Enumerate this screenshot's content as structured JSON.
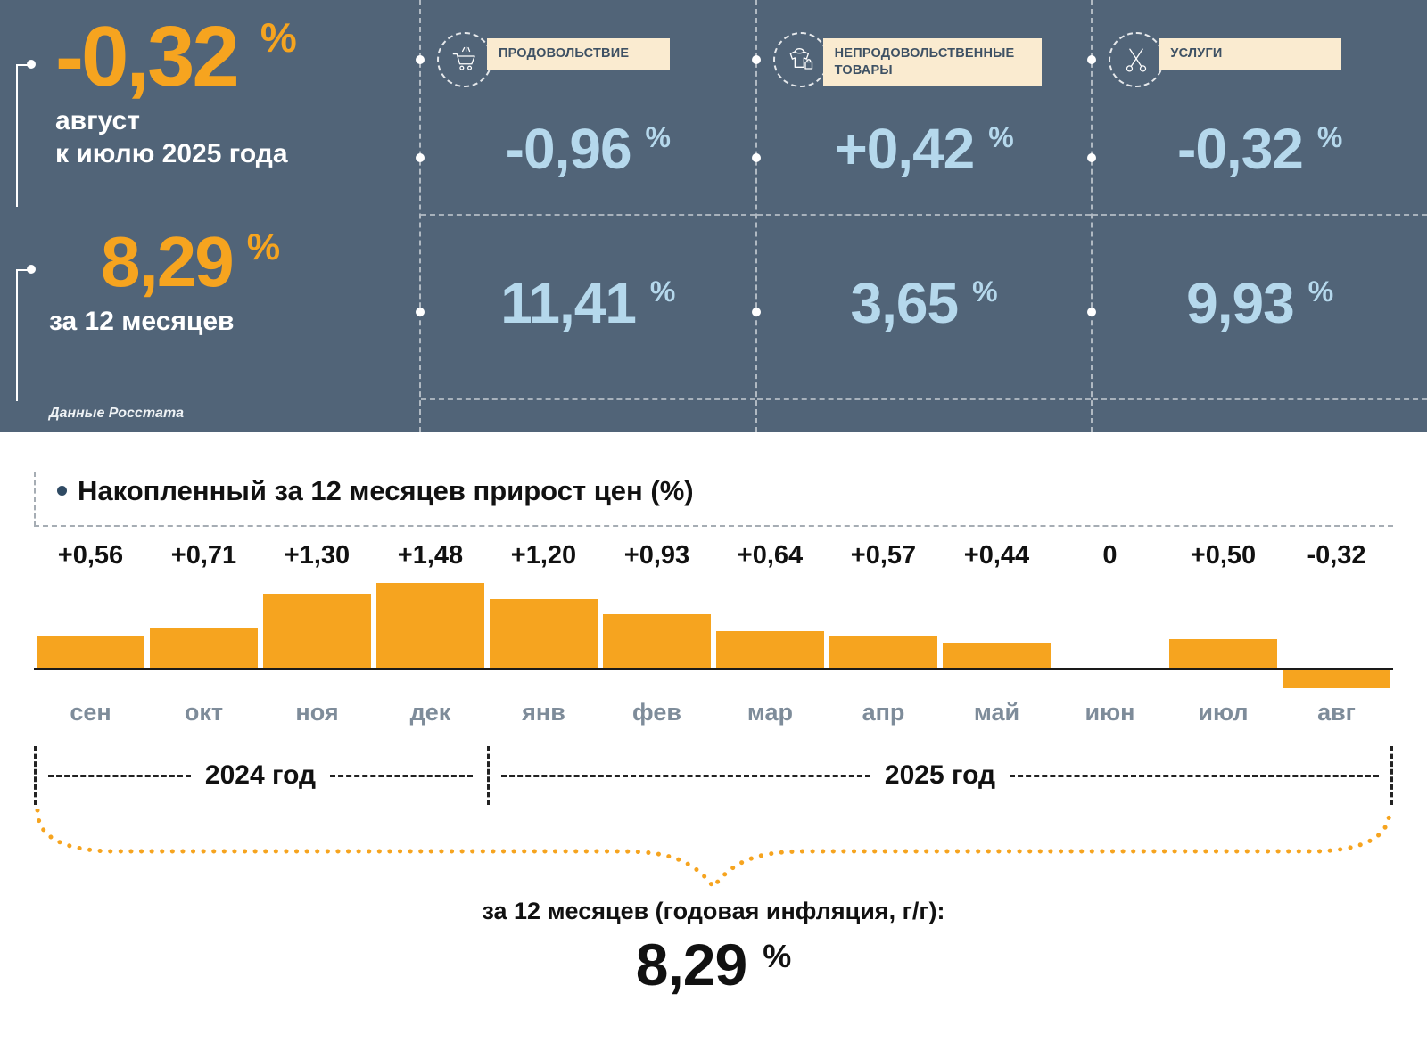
{
  "colors": {
    "panel_bg": "#516478",
    "accent_orange": "#F6A41F",
    "value_blue": "#B5D8EC",
    "chip_bg": "#FAEBD0"
  },
  "summary": {
    "monthly": {
      "value": "-0,32",
      "unit": "%",
      "label_line1": "август",
      "label_line2": "к июлю 2025 года"
    },
    "yearly": {
      "value": "8,29",
      "unit": "%",
      "label": "за 12 месяцев"
    },
    "source": "Данные Росстата",
    "categories": [
      {
        "name": "food",
        "label": "ПРОДОВОЛЬСТВИЕ",
        "icon": "shopping-cart-icon",
        "monthly": "-0,96",
        "yearly": "11,41",
        "unit": "%"
      },
      {
        "name": "non-food",
        "label": "НЕПРОДОВОЛЬСТВЕННЫЕ ТОВАРЫ",
        "icon": "clothing-icon",
        "monthly": "+0,42",
        "yearly": "3,65",
        "unit": "%"
      },
      {
        "name": "services",
        "label": "УСЛУГИ",
        "icon": "scissors-icon",
        "monthly": "-0,32",
        "yearly": "9,93",
        "unit": "%"
      }
    ]
  },
  "chart_data": {
    "type": "bar",
    "title": "Накопленный за 12 месяцев прирост цен (%)",
    "categories": [
      "сен",
      "окт",
      "ноя",
      "дек",
      "янв",
      "фев",
      "мар",
      "апр",
      "май",
      "июн",
      "июл",
      "авг"
    ],
    "values": [
      0.56,
      0.71,
      1.3,
      1.48,
      1.2,
      0.93,
      0.64,
      0.57,
      0.44,
      0,
      0.5,
      -0.32
    ],
    "value_labels": [
      "+0,56",
      "+0,71",
      "+1,30",
      "+1,48",
      "+1,20",
      "+0,93",
      "+0,64",
      "+0,57",
      "+0,44",
      "0",
      "+0,50",
      "-0,32"
    ],
    "bar_color": "#F6A41F",
    "ylim": [
      -0.4,
      1.6
    ],
    "grid": false,
    "legend": "none",
    "year_groups": [
      {
        "label": "2024 год",
        "from": 0,
        "to": 3
      },
      {
        "label": "2025 год",
        "from": 4,
        "to": 11
      }
    ]
  },
  "footer": {
    "caption": "за 12 месяцев (годовая инфляция, г/г):",
    "value": "8,29",
    "unit": "%"
  }
}
